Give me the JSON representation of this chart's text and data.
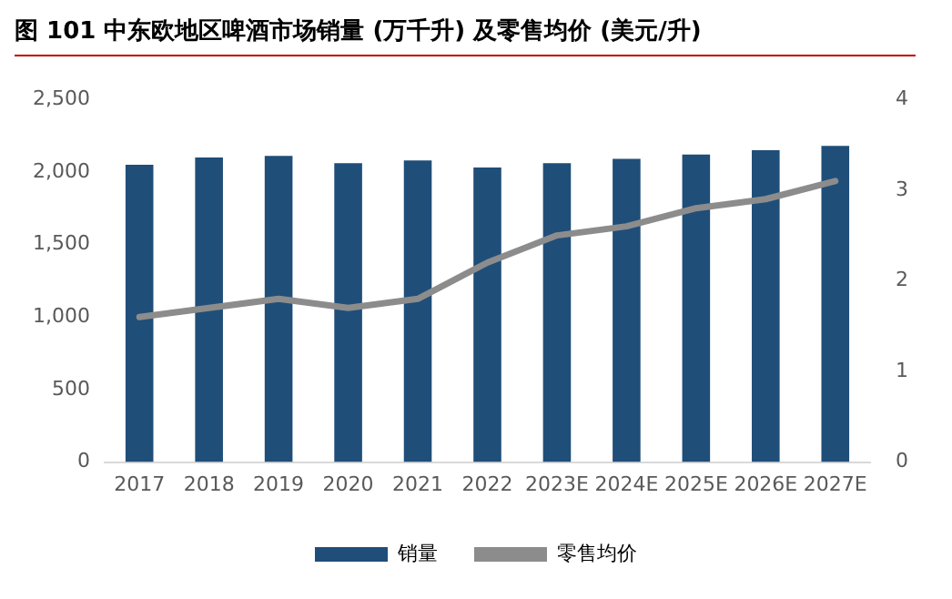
{
  "chart_data": {
    "type": "bar",
    "title": "图 101  中东欧地区啤酒市场销量 (万千升) 及零售均价 (美元/升)",
    "categories": [
      "2017",
      "2018",
      "2019",
      "2020",
      "2021",
      "2022",
      "2023E",
      "2024E",
      "2025E",
      "2026E",
      "2027E"
    ],
    "series": [
      {
        "name": "销量",
        "color": "#1f4e79",
        "values": [
          2050,
          2100,
          2110,
          2060,
          2080,
          2030,
          2060,
          2090,
          2120,
          2150,
          2180
        ]
      },
      {
        "name": "零售均价",
        "type": "line",
        "axis": "y2",
        "color": "#8c8c8c",
        "values": [
          1.6,
          1.7,
          1.8,
          1.7,
          1.8,
          2.2,
          2.5,
          2.6,
          2.8,
          2.9,
          3.1
        ]
      }
    ],
    "ylim": [
      0,
      2500
    ],
    "yticks": [
      {
        "value": 0,
        "label": "0"
      },
      {
        "value": 500,
        "label": "500"
      },
      {
        "value": 1000,
        "label": "1,000"
      },
      {
        "value": 1500,
        "label": "1,500"
      },
      {
        "value": 2000,
        "label": "2,000"
      },
      {
        "value": 2500,
        "label": "2,500"
      }
    ],
    "y2lim": [
      0,
      4
    ],
    "y2ticks": [
      0,
      1,
      2,
      3,
      4
    ],
    "grid": false,
    "legend": "bottom",
    "marker": "none",
    "line_style": "solid"
  }
}
